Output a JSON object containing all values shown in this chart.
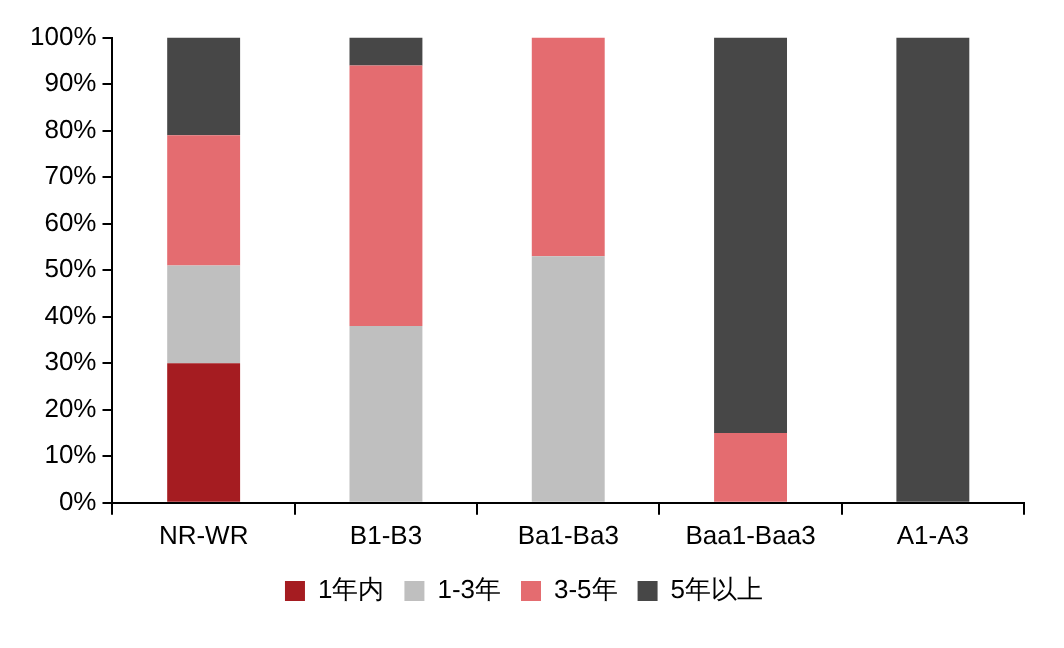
{
  "chart_data": {
    "type": "bar",
    "stacked": true,
    "categories": [
      "NR-WR",
      "B1-B3",
      "Ba1-Ba3",
      "Baa1-Baa3",
      "A1-A3"
    ],
    "series": [
      {
        "name": "1年内",
        "color": "#a51c21",
        "values": [
          30,
          0,
          0,
          0,
          0
        ]
      },
      {
        "name": "1-3年",
        "color": "#bfbfbf",
        "values": [
          21,
          38,
          53,
          0,
          0
        ]
      },
      {
        "name": "3-5年",
        "color": "#e46c70",
        "values": [
          28,
          56,
          47,
          15,
          0
        ]
      },
      {
        "name": "5年以上",
        "color": "#474747",
        "values": [
          21,
          6,
          0,
          85,
          100
        ]
      }
    ],
    "ylim": [
      0,
      100
    ],
    "yticks": [
      {
        "value": 0,
        "label": "0%"
      },
      {
        "value": 10,
        "label": "10%"
      },
      {
        "value": 20,
        "label": "20%"
      },
      {
        "value": 30,
        "label": "30%"
      },
      {
        "value": 40,
        "label": "40%"
      },
      {
        "value": 50,
        "label": "50%"
      },
      {
        "value": 60,
        "label": "60%"
      },
      {
        "value": 70,
        "label": "70%"
      },
      {
        "value": 80,
        "label": "80%"
      },
      {
        "value": 90,
        "label": "90%"
      },
      {
        "value": 100,
        "label": "100%"
      }
    ],
    "grid": false,
    "legend": "bottom"
  }
}
